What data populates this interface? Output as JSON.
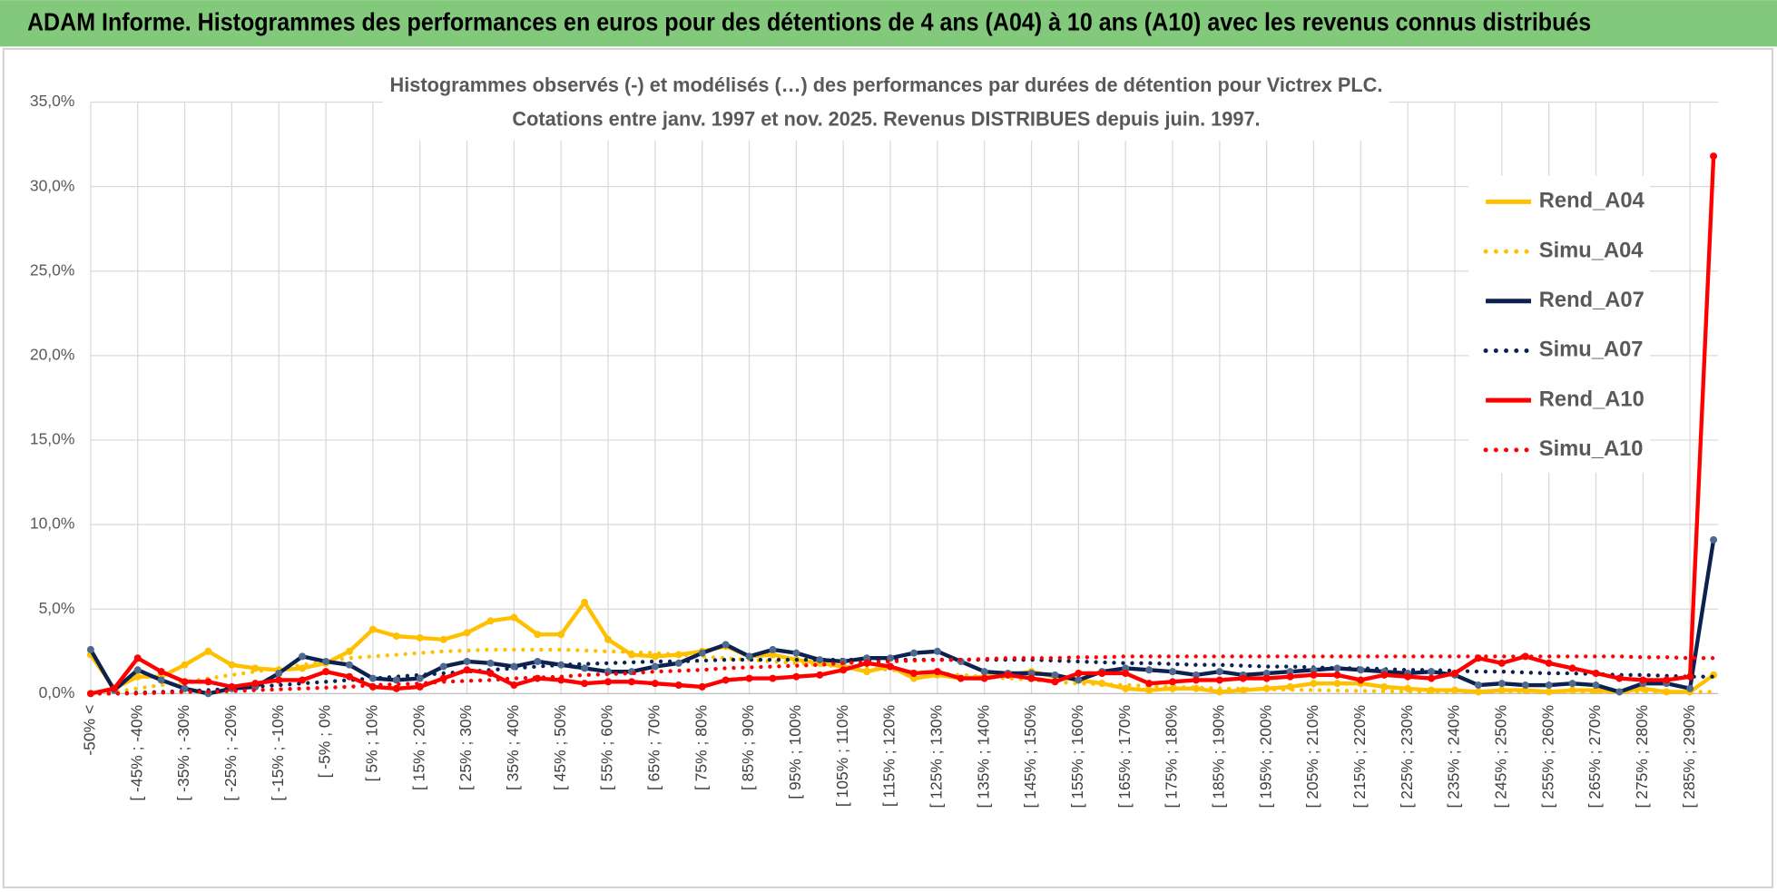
{
  "chart_data": {
    "type": "line",
    "title": "ADAM Informe. Histogrammes des performances en euros pour des détentions de 4 ans (A04) à 10 ans (A10) avec les revenus connus distribués",
    "subtitle": [
      "Histogrammes observés (-) et modélisés (…) des performances par durées de détention pour Victrex PLC.",
      "Cotations entre janv. 1997 et nov. 2025. Revenus DISTRIBUES depuis juin. 1997."
    ],
    "categories": [
      "-50% <",
      null,
      "[ -45% ; -40%",
      null,
      "[ -35% ; -30%",
      null,
      "[ -25% ; -20%",
      null,
      "[ -15% ; -10%",
      null,
      "[ -5% ; 0%",
      null,
      "[ 5% ; 10%",
      null,
      "[ 15% ; 20%",
      null,
      "[ 25% ; 30%",
      null,
      "[ 35% ; 40%",
      null,
      "[ 45% ; 50%",
      null,
      "[ 55% ; 60%",
      null,
      "[ 65% ; 70%",
      null,
      "[ 75% ; 80%",
      null,
      "[ 85% ; 90%",
      null,
      "[ 95% ; 100%",
      null,
      "[ 105% ; 110%",
      null,
      "[ 115% ; 120%",
      null,
      "[ 125% ; 130%",
      null,
      "[ 135% ; 140%",
      null,
      "[ 145% ; 150%",
      null,
      "[ 155% ; 160%",
      null,
      "[ 165% ; 170%",
      null,
      "[ 175% ; 180%",
      null,
      "[ 185% ; 190%",
      null,
      "[ 195% ; 200%",
      null,
      "[ 205% ; 210%",
      null,
      "[ 215% ; 220%",
      null,
      "[ 225% ; 230%",
      null,
      "[ 235% ; 240%",
      null,
      "[ 245% ; 250%",
      null,
      "[ 255% ; 260%",
      null,
      "[ 265% ; 270%",
      null,
      "[ 275% ; 280%",
      null,
      "[ 285% ; 290%",
      null
    ],
    "series": [
      {
        "name": "Rend_A04",
        "color": "#ffc000",
        "style": "solid",
        "values": [
          2.3,
          0.3,
          1.0,
          1.0,
          1.7,
          2.5,
          1.7,
          1.5,
          1.4,
          1.5,
          1.8,
          2.5,
          3.8,
          3.4,
          3.3,
          3.2,
          3.6,
          4.3,
          4.5,
          3.5,
          3.5,
          5.4,
          3.2,
          2.3,
          2.2,
          2.3,
          2.5,
          2.8,
          2.2,
          2.3,
          2.0,
          1.8,
          1.6,
          1.3,
          1.6,
          0.9,
          1.1,
          0.9,
          1.0,
          1.1,
          1.3,
          1.0,
          0.8,
          0.6,
          0.3,
          0.2,
          0.3,
          0.3,
          0.1,
          0.2,
          0.3,
          0.4,
          0.6,
          0.6,
          0.6,
          0.4,
          0.3,
          0.2,
          0.2,
          0.1,
          0.2,
          0.2,
          0.1,
          0.2,
          0.2,
          0.1,
          0.3,
          0.1,
          0.1,
          1.1
        ]
      },
      {
        "name": "Simu_A04",
        "color": "#ffc000",
        "style": "dotted",
        "values": [
          0,
          0.1,
          0.3,
          0.5,
          0.7,
          0.9,
          1.1,
          1.3,
          1.5,
          1.7,
          1.9,
          2.1,
          2.2,
          2.3,
          2.4,
          2.5,
          2.55,
          2.6,
          2.6,
          2.6,
          2.6,
          2.55,
          2.5,
          2.45,
          2.4,
          2.3,
          2.2,
          2.1,
          2.0,
          1.9,
          1.8,
          1.7,
          1.6,
          1.5,
          1.4,
          1.3,
          1.2,
          1.1,
          1.0,
          0.9,
          0.8,
          0.7,
          0.6,
          0.55,
          0.5,
          0.45,
          0.4,
          0.35,
          0.3,
          0.28,
          0.25,
          0.22,
          0.2,
          0.18,
          0.16,
          0.14,
          0.12,
          0.1,
          0.1,
          0.1,
          0.1,
          0.1,
          0.1,
          0.1,
          0.1,
          0.1,
          0.1,
          0.1,
          0.1,
          0.1
        ]
      },
      {
        "name": "Rend_A07",
        "color": "#0d2150",
        "style": "solid",
        "values": [
          2.6,
          0.2,
          1.4,
          0.8,
          0.3,
          0.0,
          0.3,
          0.4,
          1.2,
          2.2,
          1.9,
          1.7,
          0.9,
          0.8,
          0.9,
          1.6,
          1.9,
          1.8,
          1.6,
          1.9,
          1.7,
          1.5,
          1.3,
          1.3,
          1.6,
          1.8,
          2.4,
          2.9,
          2.2,
          2.6,
          2.4,
          2.0,
          1.9,
          2.1,
          2.1,
          2.4,
          2.5,
          1.9,
          1.3,
          1.2,
          1.2,
          1.1,
          0.8,
          1.3,
          1.5,
          1.4,
          1.3,
          1.1,
          1.3,
          1.1,
          1.2,
          1.3,
          1.4,
          1.5,
          1.4,
          1.3,
          1.2,
          1.3,
          1.1,
          0.5,
          0.6,
          0.5,
          0.5,
          0.6,
          0.5,
          0.1,
          0.6,
          0.6,
          0.3,
          9.1
        ]
      },
      {
        "name": "Simu_A07",
        "color": "#0d2150",
        "style": "dotted",
        "values": [
          0,
          0,
          0.05,
          0.1,
          0.15,
          0.2,
          0.3,
          0.4,
          0.5,
          0.6,
          0.7,
          0.8,
          0.9,
          1.0,
          1.1,
          1.2,
          1.3,
          1.4,
          1.5,
          1.6,
          1.7,
          1.75,
          1.8,
          1.85,
          1.9,
          1.9,
          1.95,
          2.0,
          2.0,
          2.0,
          2.0,
          2.0,
          2.0,
          2.0,
          2.0,
          2.0,
          2.0,
          2.0,
          2.0,
          2.0,
          2.0,
          1.95,
          1.9,
          1.85,
          1.8,
          1.8,
          1.75,
          1.7,
          1.7,
          1.65,
          1.6,
          1.6,
          1.55,
          1.5,
          1.5,
          1.45,
          1.4,
          1.4,
          1.35,
          1.3,
          1.3,
          1.25,
          1.2,
          1.2,
          1.15,
          1.1,
          1.1,
          1.05,
          1.0,
          1.0
        ]
      },
      {
        "name": "Rend_A10",
        "color": "#ff0000",
        "style": "solid",
        "values": [
          0.0,
          0.3,
          2.1,
          1.3,
          0.7,
          0.7,
          0.4,
          0.6,
          0.8,
          0.8,
          1.3,
          1.0,
          0.4,
          0.3,
          0.4,
          0.9,
          1.4,
          1.2,
          0.5,
          0.9,
          0.8,
          0.6,
          0.7,
          0.7,
          0.6,
          0.5,
          0.4,
          0.8,
          0.9,
          0.9,
          1.0,
          1.1,
          1.4,
          1.8,
          1.6,
          1.2,
          1.3,
          0.9,
          0.9,
          1.1,
          0.9,
          0.7,
          1.2,
          1.2,
          1.2,
          0.6,
          0.7,
          0.8,
          0.8,
          0.9,
          0.9,
          1.0,
          1.1,
          1.1,
          0.8,
          1.1,
          1.0,
          0.9,
          1.2,
          2.1,
          1.8,
          2.2,
          1.8,
          1.5,
          1.2,
          0.9,
          0.8,
          0.8,
          1.0,
          31.8
        ]
      },
      {
        "name": "Simu_A10",
        "color": "#ff0000",
        "style": "dotted",
        "values": [
          0,
          0,
          0,
          0.05,
          0.1,
          0.1,
          0.15,
          0.2,
          0.25,
          0.3,
          0.35,
          0.4,
          0.5,
          0.55,
          0.6,
          0.7,
          0.75,
          0.8,
          0.9,
          0.95,
          1.0,
          1.1,
          1.15,
          1.2,
          1.3,
          1.35,
          1.4,
          1.5,
          1.55,
          1.6,
          1.65,
          1.7,
          1.8,
          1.85,
          1.9,
          1.95,
          2.0,
          2.0,
          2.05,
          2.1,
          2.1,
          2.1,
          2.15,
          2.15,
          2.2,
          2.2,
          2.2,
          2.2,
          2.2,
          2.2,
          2.2,
          2.2,
          2.2,
          2.2,
          2.2,
          2.2,
          2.2,
          2.2,
          2.2,
          2.2,
          2.2,
          2.2,
          2.2,
          2.2,
          2.2,
          2.2,
          2.15,
          2.15,
          2.1,
          2.1
        ]
      }
    ],
    "ylim": [
      0,
      35
    ],
    "yticks": [
      {
        "value": 0,
        "label": "0,0%"
      },
      {
        "value": 5,
        "label": "5,0%"
      },
      {
        "value": 10,
        "label": "10,0%"
      },
      {
        "value": 15,
        "label": "15,0%"
      },
      {
        "value": 20,
        "label": "20,0%"
      },
      {
        "value": 25,
        "label": "25,0%"
      },
      {
        "value": 30,
        "label": "30,0%"
      },
      {
        "value": 35,
        "label": "35,0%"
      }
    ],
    "grid": true,
    "legend": "right",
    "header_color": "#82c97c"
  }
}
